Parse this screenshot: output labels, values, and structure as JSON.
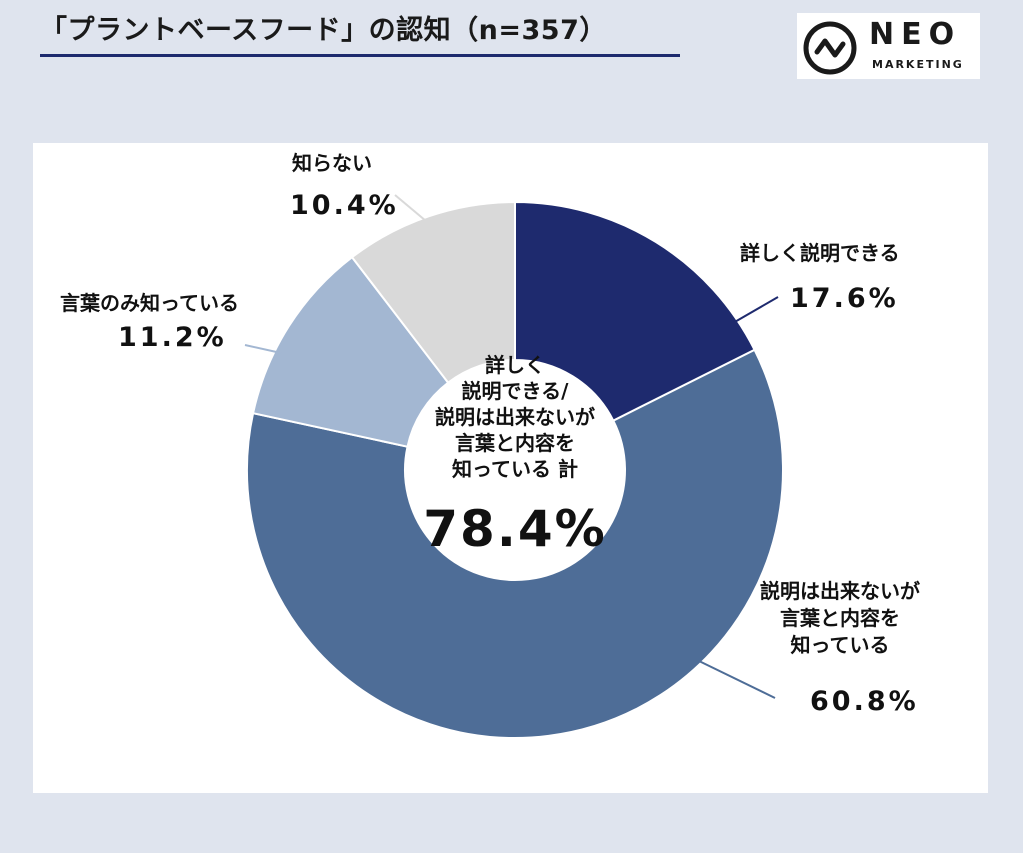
{
  "title": "「プラントベースフード」の認知（n=357）",
  "logo": {
    "word": "NEO",
    "sub": "MARKETING"
  },
  "colors": {
    "detail": "#1e2a6e",
    "knows_word": "#4e6d97",
    "word_only": "#a3b7d2",
    "unknown": "#d9d9d9",
    "title_rule": "#1d2a6e"
  },
  "chart_data": {
    "type": "pie",
    "donut": true,
    "n": 357,
    "categories": [
      "詳しく説明できる",
      "説明は出来ないが言葉と内容を知っている",
      "言葉のみ知っている",
      "知らない"
    ],
    "values": [
      17.6,
      60.8,
      11.2,
      10.4
    ],
    "labels": {
      "s0": "詳しく説明できる",
      "s1": "説明は出来ないが\n言葉と内容を\n知っている",
      "s2": "言葉のみ知っている",
      "s3": "知らない"
    },
    "value_labels": [
      "17.6%",
      "60.8%",
      "11.2%",
      "10.4%"
    ],
    "center_text": "詳しく\n説明できる/\n説明は出来ないが\n言葉と内容を\n知っている 計",
    "center_value": "78.4%"
  }
}
